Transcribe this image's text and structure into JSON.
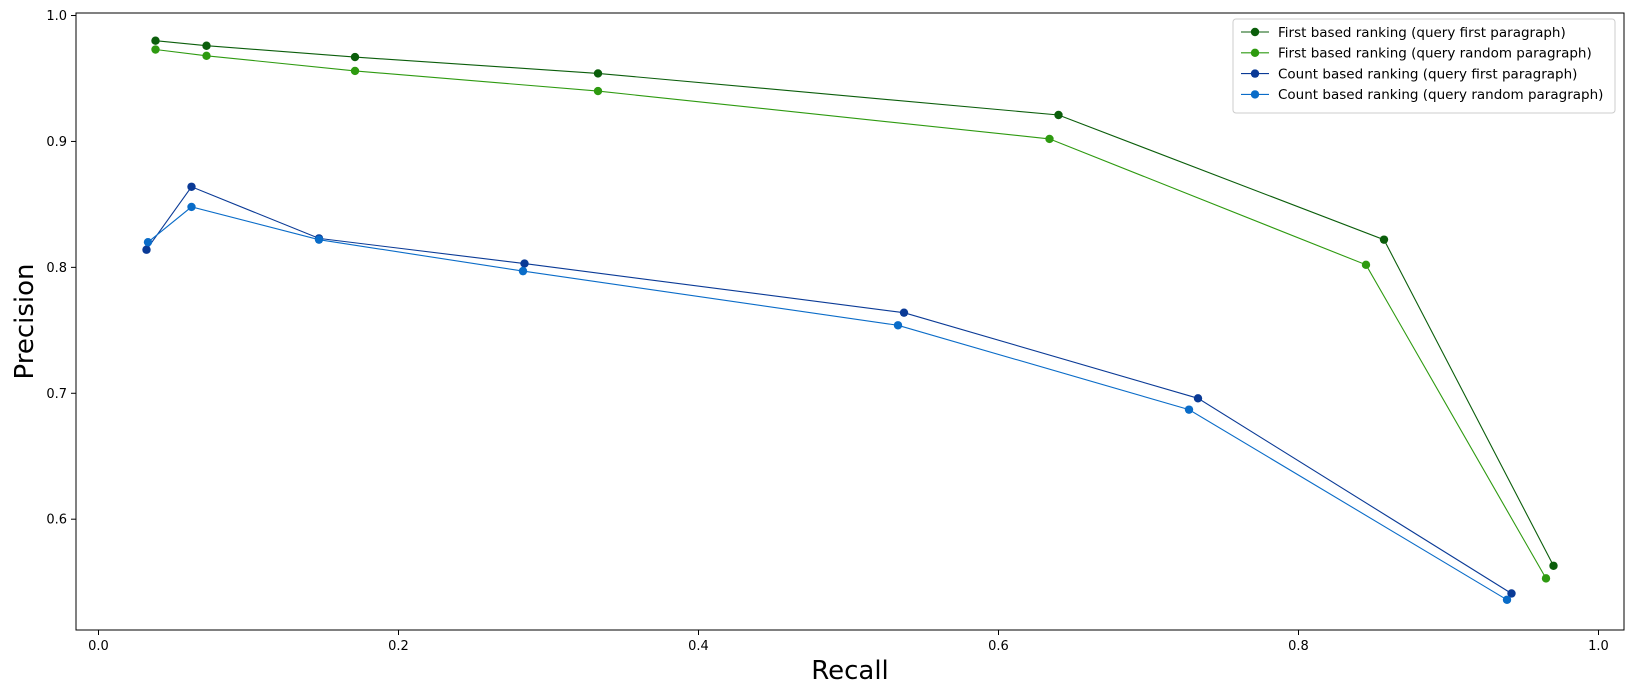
{
  "chart_data": {
    "type": "line",
    "title": "",
    "xlabel": "Recall",
    "ylabel": "Precision",
    "xlim": [
      -0.015,
      1.017
    ],
    "ylim": [
      0.512,
      1.002
    ],
    "xticks": [
      0.0,
      0.2,
      0.4,
      0.6,
      0.8,
      1.0
    ],
    "xtick_labels": [
      "0.0",
      "0.2",
      "0.4",
      "0.6",
      "0.8",
      "1.0"
    ],
    "yticks": [
      0.6,
      0.7,
      0.8,
      0.9,
      1.0
    ],
    "ytick_labels": [
      "0.6",
      "0.7",
      "0.8",
      "0.9",
      "1.0"
    ],
    "grid": false,
    "legend_position": "top-right",
    "series": [
      {
        "name": "First based ranking (query first paragraph)",
        "color": "#0b5e0b",
        "x": [
          0.038,
          0.072,
          0.171,
          0.333,
          0.64,
          0.857,
          0.97
        ],
        "y": [
          0.98,
          0.976,
          0.967,
          0.954,
          0.921,
          0.822,
          0.563
        ]
      },
      {
        "name": "First based ranking (query random paragraph)",
        "color": "#2e9a10",
        "x": [
          0.038,
          0.072,
          0.171,
          0.333,
          0.634,
          0.845,
          0.965
        ],
        "y": [
          0.973,
          0.968,
          0.956,
          0.94,
          0.902,
          0.802,
          0.553
        ]
      },
      {
        "name": "Count based ranking (query first paragraph)",
        "color": "#0a3a96",
        "x": [
          0.032,
          0.062,
          0.147,
          0.284,
          0.537,
          0.733,
          0.942
        ],
        "y": [
          0.814,
          0.864,
          0.823,
          0.803,
          0.764,
          0.696,
          0.541
        ]
      },
      {
        "name": "Count based ranking (query random paragraph)",
        "color": "#0a6cc8",
        "x": [
          0.033,
          0.062,
          0.147,
          0.283,
          0.533,
          0.727,
          0.939
        ],
        "y": [
          0.82,
          0.848,
          0.822,
          0.797,
          0.754,
          0.687,
          0.536
        ]
      }
    ]
  }
}
